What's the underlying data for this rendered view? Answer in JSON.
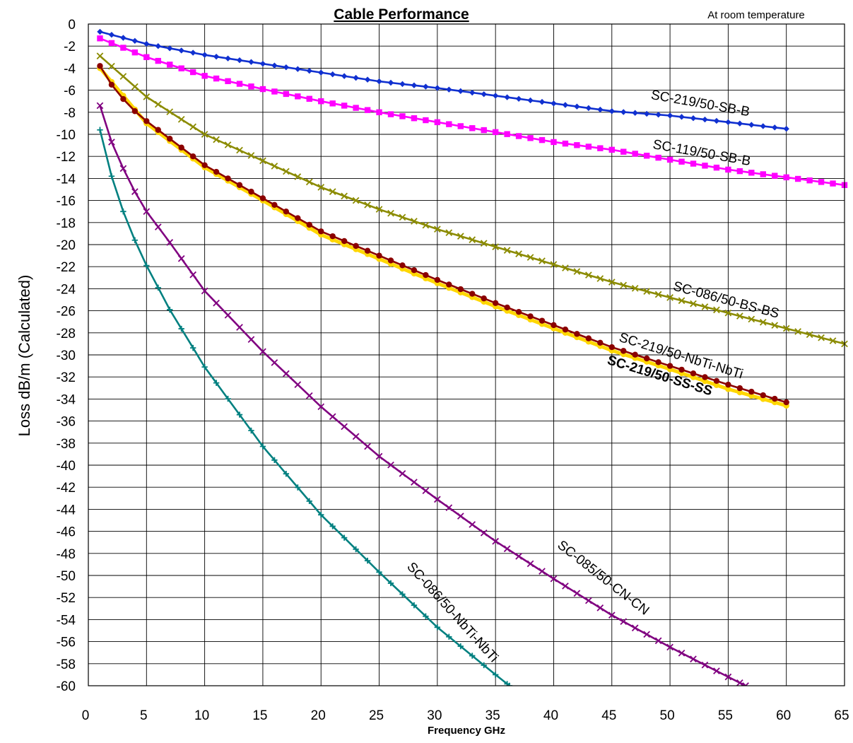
{
  "chart_data": {
    "type": "line",
    "title": "Cable Performance",
    "subtitle": "At room temperature",
    "xlabel": "Frequency GHz",
    "ylabel": "Loss dB/m  (Calculated)",
    "xlim": [
      0,
      65
    ],
    "ylim": [
      -60,
      0
    ],
    "x_ticks": [
      0,
      5,
      10,
      15,
      20,
      25,
      30,
      35,
      40,
      45,
      50,
      55,
      60,
      65
    ],
    "y_ticks": [
      0,
      -2,
      -4,
      -6,
      -8,
      -10,
      -12,
      -14,
      -16,
      -18,
      -20,
      -22,
      -24,
      -26,
      -28,
      -30,
      -32,
      -34,
      -36,
      -38,
      -40,
      -42,
      -44,
      -46,
      -48,
      -50,
      -52,
      -54,
      -56,
      -58,
      -60
    ],
    "grid": true,
    "legend": "labels placed next to each curve",
    "series": [
      {
        "name": "SC-219/50-SB-B",
        "color": "#1030d0",
        "marker": "diamond",
        "x": [
          1,
          5,
          10,
          15,
          20,
          25,
          30,
          35,
          40,
          45,
          50,
          55,
          60
        ],
        "y": [
          -0.7,
          -1.8,
          -2.8,
          -3.6,
          -4.4,
          -5.2,
          -5.8,
          -6.5,
          -7.2,
          -7.9,
          -8.3,
          -8.9,
          -9.5
        ]
      },
      {
        "name": "SC-119/50-SB-B",
        "color": "#ff00ff",
        "marker": "square",
        "x": [
          1,
          5,
          10,
          15,
          20,
          25,
          30,
          35,
          40,
          45,
          50,
          55,
          60,
          65
        ],
        "y": [
          -1.3,
          -3.0,
          -4.7,
          -5.9,
          -7.0,
          -8.0,
          -8.9,
          -9.8,
          -10.7,
          -11.4,
          -12.3,
          -13.2,
          -13.9,
          -14.6
        ]
      },
      {
        "name": "SC-086/50-BS-BS",
        "color": "#8b8b00",
        "marker": "x",
        "x": [
          1,
          5,
          10,
          15,
          20,
          25,
          30,
          35,
          40,
          45,
          50,
          55,
          60,
          65
        ],
        "y": [
          -2.9,
          -6.6,
          -10.0,
          -12.4,
          -14.8,
          -16.8,
          -18.6,
          -20.2,
          -21.8,
          -23.4,
          -24.8,
          -26.2,
          -27.6,
          -29.0
        ]
      },
      {
        "name": "SC-219/50-SS-SS",
        "color": "#ffd700",
        "marker": "circle",
        "x": [
          1,
          5,
          10,
          15,
          20,
          25,
          30,
          35,
          40,
          45,
          50,
          55,
          60
        ],
        "y": [
          -4.0,
          -9.0,
          -13.0,
          -16.0,
          -19.1,
          -21.3,
          -23.5,
          -25.6,
          -27.6,
          -29.6,
          -31.3,
          -33.1,
          -34.6
        ]
      },
      {
        "name": "SC-219/50-NbTi-NbTi",
        "color": "#8b0000",
        "marker": "circle",
        "x": [
          1,
          2,
          3,
          4,
          5,
          10,
          15,
          20,
          25,
          30,
          35,
          40,
          45,
          50,
          55,
          60
        ],
        "y": [
          -3.8,
          -5.5,
          -6.8,
          -7.9,
          -8.8,
          -12.8,
          -15.8,
          -18.8,
          -21.0,
          -23.2,
          -25.3,
          -27.3,
          -29.3,
          -31.0,
          -32.7,
          -34.3
        ]
      },
      {
        "name": "SC-085/50-CN-CN",
        "color": "#800080",
        "marker": "x",
        "x": [
          1,
          2,
          3,
          4,
          5,
          7,
          10,
          15,
          20,
          25,
          30,
          35,
          40,
          45,
          50,
          55,
          56.5
        ],
        "y": [
          -7.4,
          -10.7,
          -13.1,
          -15.2,
          -17.0,
          -19.8,
          -24.2,
          -29.7,
          -34.7,
          -39.2,
          -43.1,
          -46.9,
          -50.3,
          -53.6,
          -56.5,
          -59.2,
          -60.0
        ]
      },
      {
        "name": "SC-086/50-NbTi-NbTi",
        "color": "#008080",
        "marker": "plus",
        "x": [
          1,
          2,
          3,
          4,
          5,
          7,
          10,
          15,
          20,
          25,
          30,
          35,
          36.2
        ],
        "y": [
          -9.6,
          -13.8,
          -17.0,
          -19.6,
          -21.9,
          -25.9,
          -31.1,
          -38.3,
          -44.5,
          -49.7,
          -54.7,
          -59.0,
          -60.0
        ]
      }
    ],
    "annotations": [
      {
        "text": "SC-219/50-SB-B",
        "series": 0
      },
      {
        "text": "SC-119/50-SB-B",
        "series": 1
      },
      {
        "text": "SC-086/50-BS-BS",
        "series": 2
      },
      {
        "text": "SC-219/50-NbTi-NbTi",
        "series": 4
      },
      {
        "text": "SC-219/50-SS-SS",
        "series": 3
      },
      {
        "text": "SC-085/50-CN-CN",
        "series": 5
      },
      {
        "text": "SC-086/50-NbTi-NbTi",
        "series": 6
      }
    ]
  }
}
